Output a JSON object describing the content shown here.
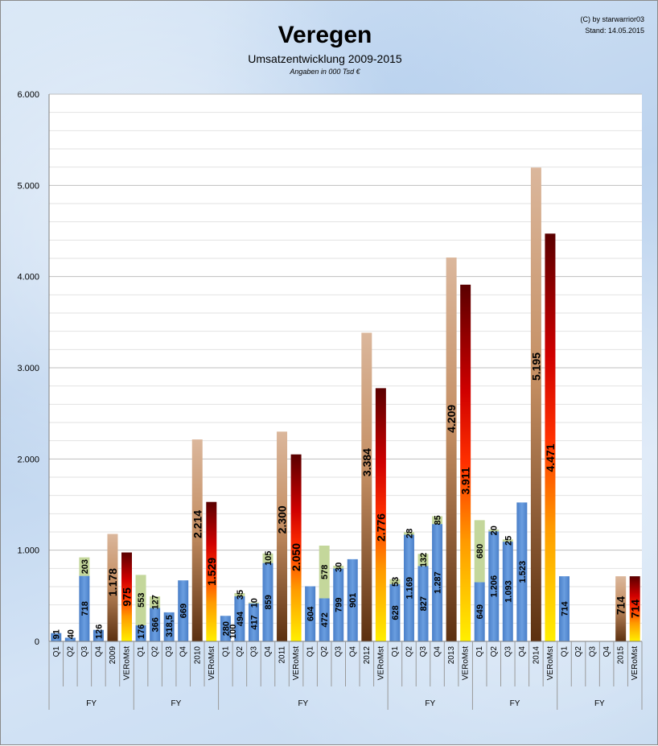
{
  "chart_data": {
    "type": "bar",
    "title": "Veregen",
    "subtitle": "Umsatzentwicklung 2009-2015",
    "unit_note": "Angaben in 000 Tsd €",
    "credit": "(C) by starwarrior03",
    "date_stamp": "Stand: 14.05.2015",
    "ylim": [
      0,
      6000
    ],
    "yticks": [
      "0",
      "1.000",
      "2.000",
      "3.000",
      "4.000",
      "5.000",
      "6.000"
    ],
    "ytick_values": [
      0,
      1000,
      2000,
      3000,
      4000,
      5000,
      6000
    ],
    "group_label": "FY",
    "colors": {
      "quarter": "#5b8fd6",
      "increment": "#c4d79b",
      "fy_top": "#d8b397",
      "fy_bottom": "#5c3010",
      "vero_top": "#5a0000",
      "vero_mid": "#ff2a00",
      "vero_low": "#ff9a00",
      "vero_bottom": "#ffef00",
      "grid": "#bfbfbf",
      "plot_bg": "#ffffff"
    },
    "groups": [
      {
        "name": "2009",
        "bars": [
          {
            "label": "Q1",
            "kind": "q",
            "base": 91,
            "inc": 0,
            "lb": "91"
          },
          {
            "label": "Q2",
            "kind": "q",
            "base": 40,
            "inc": 0,
            "lb": "40"
          },
          {
            "label": "Q3",
            "kind": "q",
            "base": 718,
            "inc": 203,
            "lb": "718",
            "li": "203"
          },
          {
            "label": "Q4",
            "kind": "q",
            "base": 126,
            "inc": 0,
            "lb": "126"
          },
          {
            "label": "2009",
            "kind": "fy",
            "base": 1178,
            "inc": 0,
            "lb": "1.178"
          },
          {
            "label": "VERoMst",
            "kind": "vero",
            "base": 975,
            "inc": 0,
            "lb": "975"
          }
        ]
      },
      {
        "name": "2010",
        "bars": [
          {
            "label": "Q1",
            "kind": "q",
            "base": 176,
            "inc": 553,
            "lb": "176",
            "li": "553"
          },
          {
            "label": "Q2",
            "kind": "q",
            "base": 366,
            "inc": 127,
            "lb": "366",
            "li": "127"
          },
          {
            "label": "Q3",
            "kind": "q",
            "base": 318.5,
            "inc": 0,
            "lb": "318,5"
          },
          {
            "label": "Q4",
            "kind": "q",
            "base": 669,
            "inc": 0,
            "lb": "669"
          },
          {
            "label": "2010",
            "kind": "fy",
            "base": 2214,
            "inc": 0,
            "lb": "2.214"
          },
          {
            "label": "VERoMst",
            "kind": "vero",
            "base": 1529,
            "inc": 0,
            "lb": "1.529"
          }
        ]
      },
      {
        "name": "2011",
        "bars": [
          {
            "label": "Q1",
            "kind": "q",
            "base": 280,
            "inc": 0,
            "lb": "280",
            "extra": "100"
          },
          {
            "label": "Q2",
            "kind": "q",
            "base": 494,
            "inc": 35,
            "lb": "494",
            "li": "35"
          },
          {
            "label": "Q3",
            "kind": "q",
            "base": 417,
            "inc": 10,
            "lb": "417",
            "li": "10"
          },
          {
            "label": "Q4",
            "kind": "q",
            "base": 859,
            "inc": 105,
            "lb": "859",
            "li": "105"
          },
          {
            "label": "2011",
            "kind": "fy",
            "base": 2300,
            "inc": 0,
            "lb": "2.300"
          },
          {
            "label": "VERoMst",
            "kind": "vero",
            "base": 2050,
            "inc": 0,
            "lb": "2.050"
          },
          {
            "label": "Q1",
            "kind": "q",
            "base": 604,
            "inc": 0,
            "lb": "604"
          },
          {
            "label": "Q2",
            "kind": "q",
            "base": 472,
            "inc": 578,
            "lb": "472",
            "li": "578"
          },
          {
            "label": "Q3",
            "kind": "q",
            "base": 799,
            "inc": 30,
            "lb": "799",
            "li": "30"
          },
          {
            "label": "Q4",
            "kind": "q",
            "base": 901,
            "inc": 0,
            "lb": "901"
          },
          {
            "label": "2012",
            "kind": "fy",
            "base": 3384,
            "inc": 0,
            "lb": "3.384"
          },
          {
            "label": "VERoMst",
            "kind": "vero",
            "base": 2776,
            "inc": 0,
            "lb": "2.776"
          }
        ]
      },
      {
        "name": "2013",
        "bars": [
          {
            "label": "Q1",
            "kind": "q",
            "base": 628,
            "inc": 53,
            "lb": "628",
            "li": "53"
          },
          {
            "label": "Q2",
            "kind": "q",
            "base": 1169,
            "inc": 28,
            "lb": "1.169",
            "li": "28"
          },
          {
            "label": "Q3",
            "kind": "q",
            "base": 827,
            "inc": 132,
            "lb": "827",
            "li": "132"
          },
          {
            "label": "Q4",
            "kind": "q",
            "base": 1287,
            "inc": 85,
            "lb": "1.287",
            "li": "85"
          },
          {
            "label": "2013",
            "kind": "fy",
            "base": 4209,
            "inc": 0,
            "lb": "4.209"
          },
          {
            "label": "VERoMst",
            "kind": "vero",
            "base": 3911,
            "inc": 0,
            "lb": "3.911"
          }
        ]
      },
      {
        "name": "2014",
        "bars": [
          {
            "label": "Q1",
            "kind": "q",
            "base": 649,
            "inc": 680,
            "lb": "649",
            "li": "680"
          },
          {
            "label": "Q2",
            "kind": "q",
            "base": 1206,
            "inc": 20,
            "lb": "1.206",
            "li": "20"
          },
          {
            "label": "Q3",
            "kind": "q",
            "base": 1093,
            "inc": 25,
            "lb": "1.093",
            "li": "25"
          },
          {
            "label": "Q4",
            "kind": "q",
            "base": 1523,
            "inc": 0,
            "lb": "1.523"
          },
          {
            "label": "2014",
            "kind": "fy",
            "base": 5195,
            "inc": 0,
            "lb": "5.195"
          },
          {
            "label": "VERoMst",
            "kind": "vero",
            "base": 4471,
            "inc": 0,
            "lb": "4.471"
          }
        ]
      },
      {
        "name": "2015",
        "bars": [
          {
            "label": "Q1",
            "kind": "q",
            "base": 714,
            "inc": 0,
            "lb": "714"
          },
          {
            "label": "Q2",
            "kind": "q",
            "base": 0,
            "inc": 0
          },
          {
            "label": "Q3",
            "kind": "q",
            "base": 0,
            "inc": 0
          },
          {
            "label": "Q4",
            "kind": "q",
            "base": 0,
            "inc": 0
          },
          {
            "label": "2015",
            "kind": "fy",
            "base": 714,
            "inc": 0,
            "lb": "714"
          },
          {
            "label": "VERoMst",
            "kind": "vero",
            "base": 714,
            "inc": 0,
            "lb": "714"
          }
        ]
      }
    ]
  }
}
